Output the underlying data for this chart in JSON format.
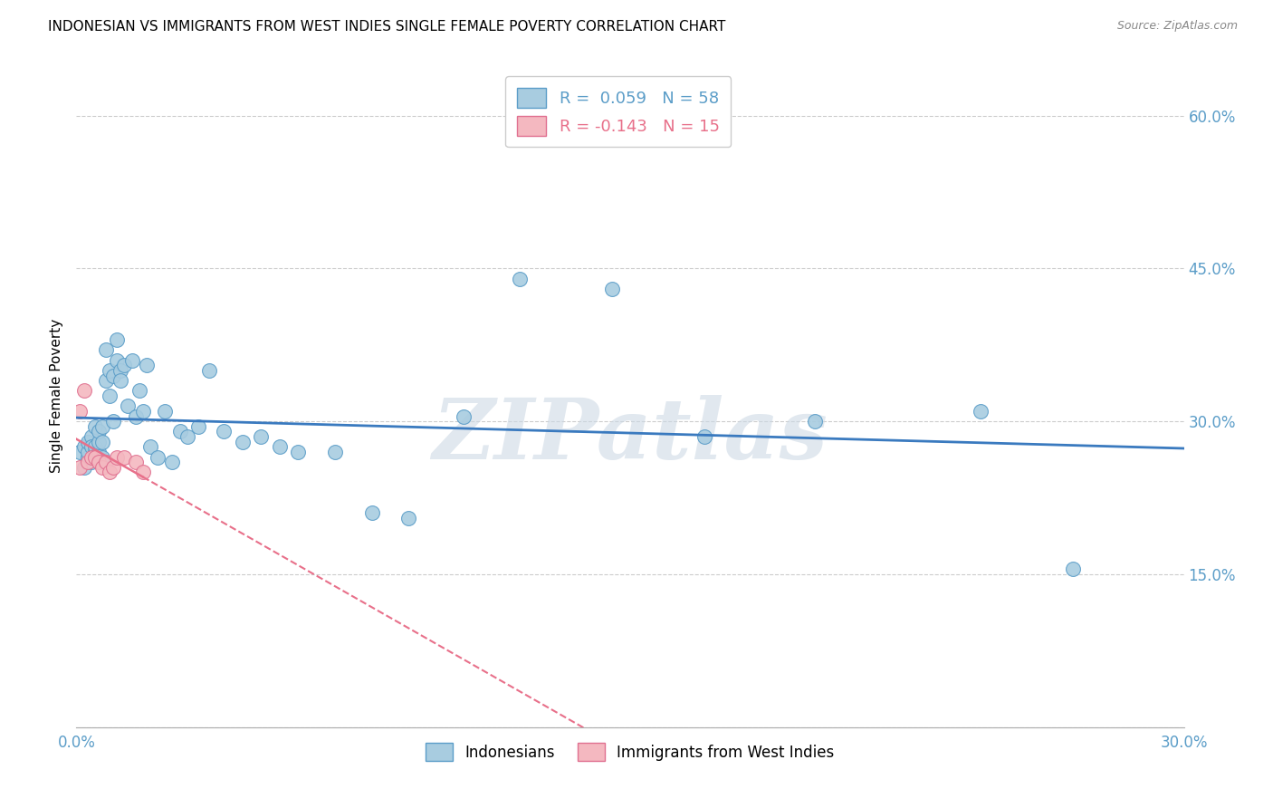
{
  "title": "INDONESIAN VS IMMIGRANTS FROM WEST INDIES SINGLE FEMALE POVERTY CORRELATION CHART",
  "source": "Source: ZipAtlas.com",
  "ylabel": "Single Female Poverty",
  "xlim": [
    0.0,
    0.3
  ],
  "ylim": [
    0.0,
    0.65
  ],
  "x_ticks": [
    0.0,
    0.05,
    0.1,
    0.15,
    0.2,
    0.25,
    0.3
  ],
  "x_tick_labels": [
    "0.0%",
    "",
    "",
    "",
    "",
    "",
    "30.0%"
  ],
  "y_ticks_right": [
    0.0,
    0.15,
    0.3,
    0.45,
    0.6
  ],
  "y_tick_labels_right": [
    "",
    "15.0%",
    "30.0%",
    "45.0%",
    "60.0%"
  ],
  "color_indonesian": "#a8cce0",
  "color_indonesian_edge": "#5b9dc8",
  "color_westindies": "#f4b8c0",
  "color_westindies_edge": "#e07090",
  "color_line_indonesian": "#3a7abf",
  "color_line_westindies": "#e8708a",
  "color_watermark": "#cdd9e5",
  "watermark_text": "ZIPatlas",
  "legend_label1": "Indonesians",
  "legend_label2": "Immigrants from West Indies",
  "legend_text1": "R =  0.059   N = 58",
  "legend_text2": "R = -0.143   N = 15",
  "legend_color1": "#5b9dc8",
  "legend_color2": "#e8708a",
  "background_color": "#ffffff",
  "grid_color": "#cccccc",
  "indonesian_x": [
    0.001,
    0.002,
    0.002,
    0.003,
    0.003,
    0.003,
    0.004,
    0.004,
    0.004,
    0.005,
    0.005,
    0.005,
    0.006,
    0.006,
    0.006,
    0.007,
    0.007,
    0.007,
    0.008,
    0.008,
    0.009,
    0.009,
    0.01,
    0.01,
    0.011,
    0.011,
    0.012,
    0.012,
    0.013,
    0.014,
    0.015,
    0.016,
    0.017,
    0.018,
    0.019,
    0.02,
    0.022,
    0.024,
    0.026,
    0.028,
    0.03,
    0.033,
    0.036,
    0.04,
    0.045,
    0.05,
    0.055,
    0.06,
    0.07,
    0.08,
    0.09,
    0.105,
    0.12,
    0.145,
    0.17,
    0.2,
    0.245,
    0.27
  ],
  "indonesian_y": [
    0.27,
    0.255,
    0.275,
    0.265,
    0.27,
    0.28,
    0.26,
    0.285,
    0.275,
    0.27,
    0.275,
    0.295,
    0.27,
    0.28,
    0.29,
    0.265,
    0.28,
    0.295,
    0.34,
    0.37,
    0.35,
    0.325,
    0.345,
    0.3,
    0.36,
    0.38,
    0.35,
    0.34,
    0.355,
    0.315,
    0.36,
    0.305,
    0.33,
    0.31,
    0.355,
    0.275,
    0.265,
    0.31,
    0.26,
    0.29,
    0.285,
    0.295,
    0.35,
    0.29,
    0.28,
    0.285,
    0.275,
    0.27,
    0.27,
    0.21,
    0.205,
    0.305,
    0.44,
    0.43,
    0.285,
    0.3,
    0.31,
    0.155
  ],
  "westindies_x": [
    0.001,
    0.001,
    0.002,
    0.003,
    0.004,
    0.005,
    0.006,
    0.007,
    0.008,
    0.009,
    0.01,
    0.011,
    0.013,
    0.016,
    0.018
  ],
  "westindies_y": [
    0.31,
    0.255,
    0.33,
    0.26,
    0.265,
    0.265,
    0.26,
    0.255,
    0.26,
    0.25,
    0.255,
    0.265,
    0.265,
    0.26,
    0.25
  ]
}
